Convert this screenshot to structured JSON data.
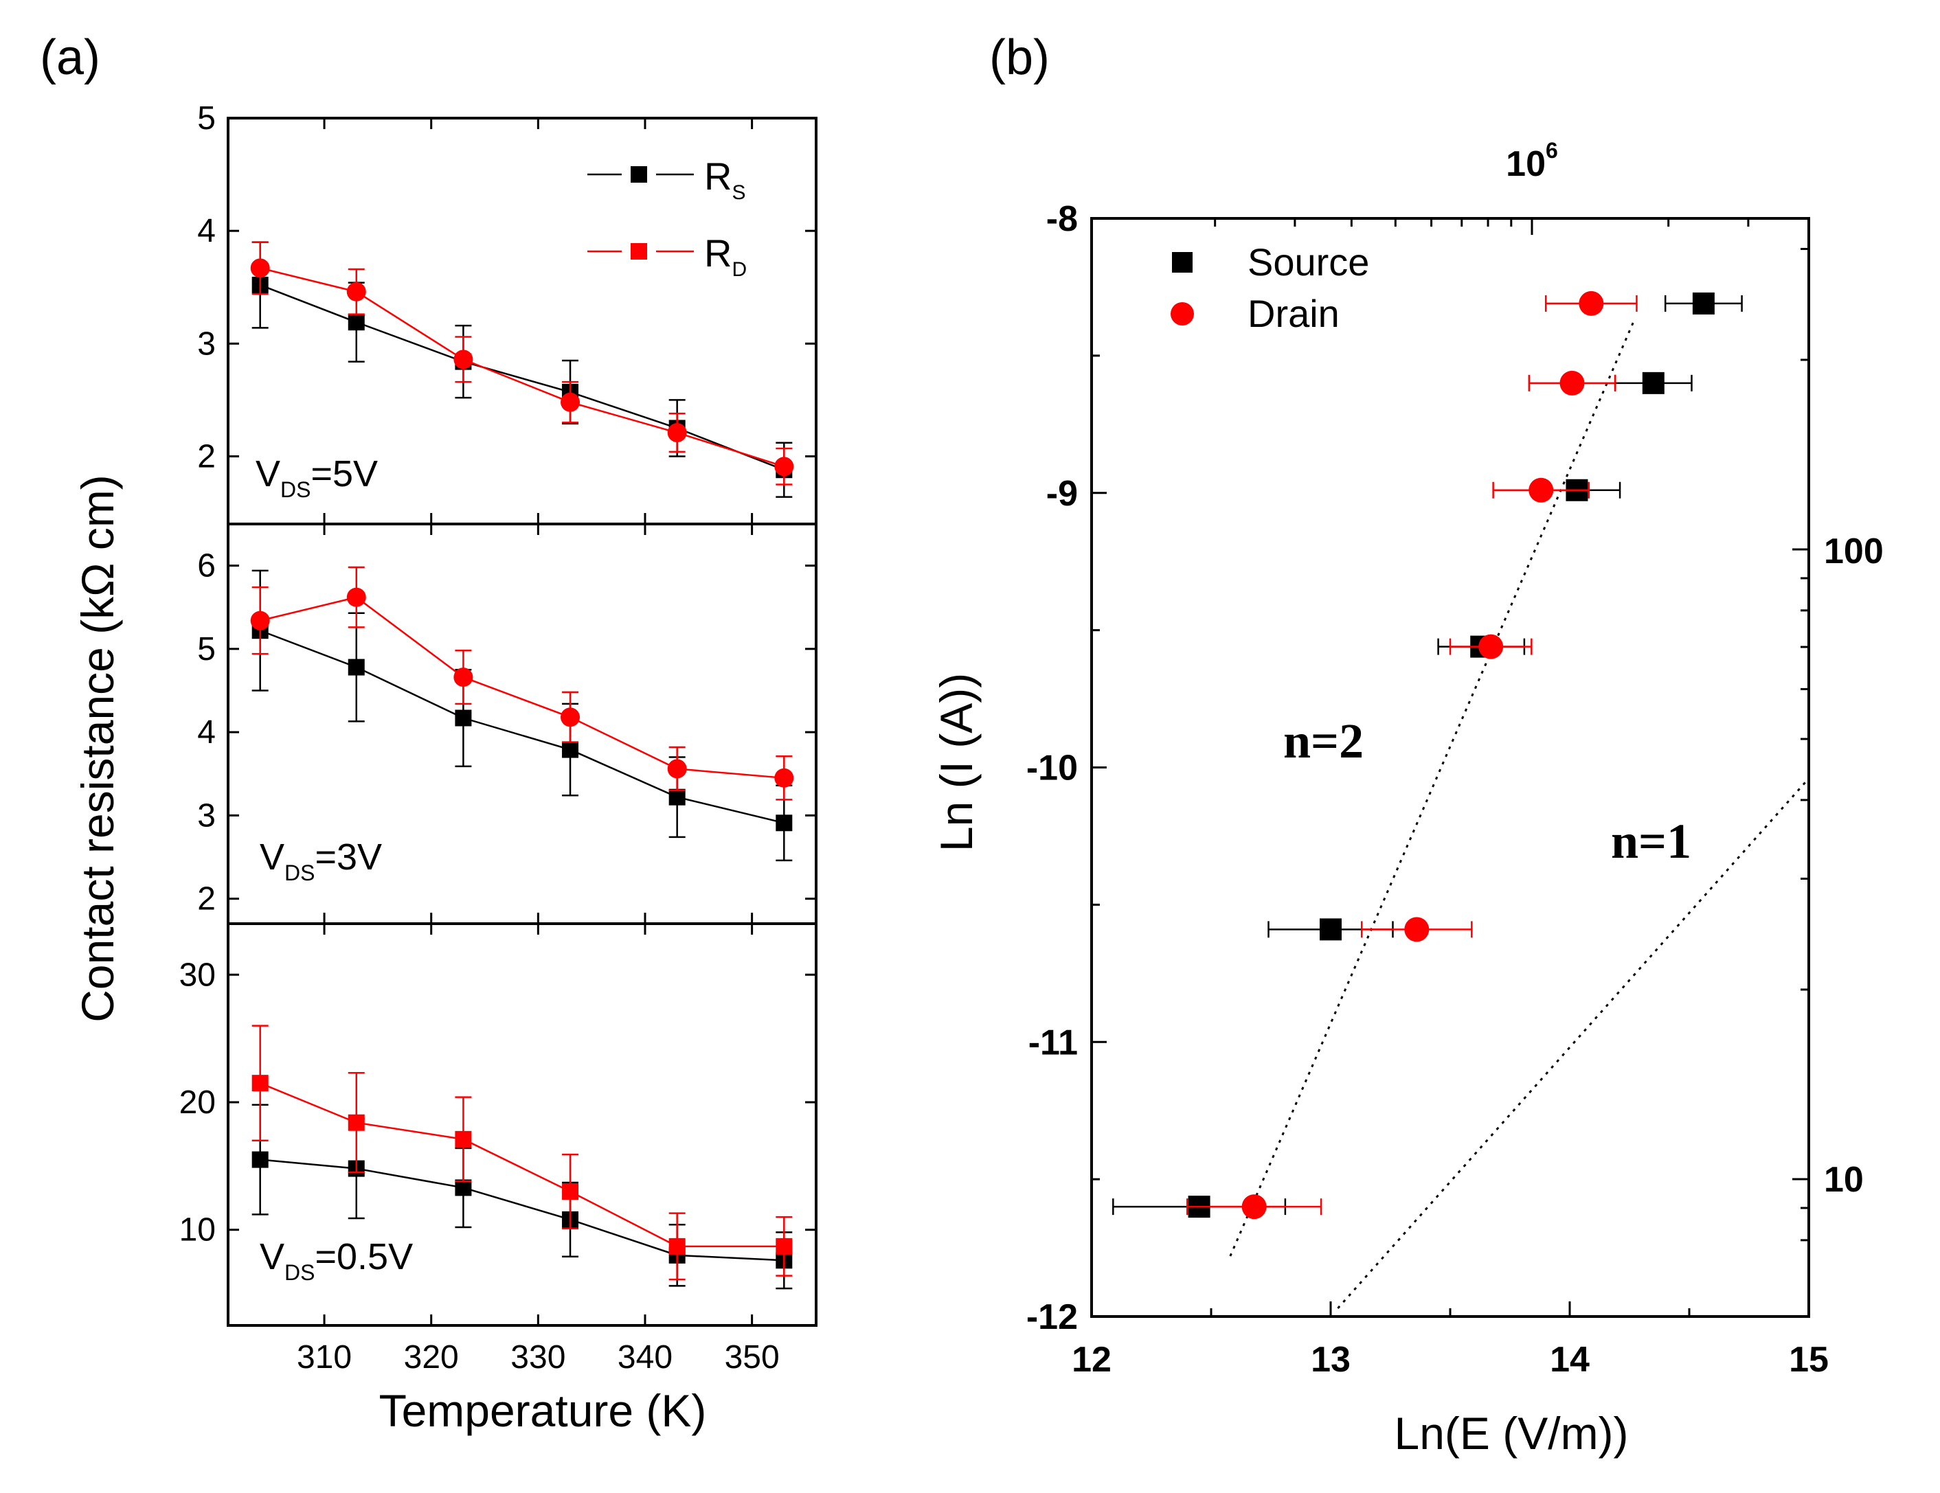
{
  "colors": {
    "black": "#000000",
    "red": "#ff0000"
  },
  "panel_labels": {
    "a": "(a)",
    "b": "(b)"
  },
  "chart_data": [
    {
      "type": "line",
      "panel": "(a)",
      "ylabel": "Contact resistance (kΩ cm)",
      "xlabel": "Temperature (K)",
      "x_ticks": [
        "310",
        "320",
        "330",
        "340",
        "350"
      ],
      "x": [
        304,
        313,
        323,
        333,
        343,
        353
      ],
      "xlim": [
        301,
        356
      ],
      "legend": {
        "placement": "top-right",
        "entries": [
          {
            "base": "R",
            "sub": "S"
          },
          {
            "base": "R",
            "sub": "D"
          }
        ]
      },
      "subplots": [
        {
          "annotation": {
            "base": "V",
            "sub": "DS",
            "rest": "=5V"
          },
          "ylim": [
            1.4,
            5.0
          ],
          "y_ticks": [
            "2",
            "3",
            "4",
            "5"
          ],
          "series": [
            {
              "name": "R_S",
              "color": "#000000",
              "marker": "square",
              "values": [
                3.52,
                3.19,
                2.84,
                2.57,
                2.25,
                1.88
              ],
              "errors": [
                0.38,
                0.35,
                0.32,
                0.28,
                0.25,
                0.24
              ]
            },
            {
              "name": "R_D",
              "color": "#ff0000",
              "marker": "circle",
              "values": [
                3.67,
                3.46,
                2.86,
                2.48,
                2.21,
                1.91
              ],
              "errors": [
                0.23,
                0.2,
                0.2,
                0.18,
                0.17,
                0.16
              ]
            }
          ]
        },
        {
          "annotation": {
            "base": "V",
            "sub": "DS",
            "rest": "=3V"
          },
          "ylim": [
            1.7,
            6.5
          ],
          "y_ticks": [
            "2",
            "3",
            "4",
            "5",
            "6"
          ],
          "series": [
            {
              "name": "R_S",
              "color": "#000000",
              "marker": "square",
              "values": [
                5.22,
                4.78,
                4.17,
                3.79,
                3.22,
                2.91
              ],
              "errors": [
                0.72,
                0.65,
                0.58,
                0.55,
                0.48,
                0.45
              ]
            },
            {
              "name": "R_D",
              "color": "#ff0000",
              "marker": "circle",
              "values": [
                5.34,
                5.62,
                4.66,
                4.18,
                3.56,
                3.45
              ],
              "errors": [
                0.4,
                0.36,
                0.32,
                0.3,
                0.26,
                0.26
              ]
            }
          ]
        },
        {
          "annotation": {
            "base": "V",
            "sub": "DS",
            "rest": "=0.5V"
          },
          "ylim": [
            2.5,
            34
          ],
          "y_ticks": [
            "10",
            "20",
            "30"
          ],
          "series": [
            {
              "name": "R_S",
              "color": "#000000",
              "marker": "square",
              "values": [
                15.5,
                14.8,
                13.3,
                10.8,
                8.0,
                7.6
              ],
              "errors": [
                4.3,
                3.9,
                3.1,
                2.9,
                2.4,
                2.2
              ]
            },
            {
              "name": "R_D",
              "color": "#ff0000",
              "marker": "square",
              "values": [
                21.5,
                18.4,
                17.1,
                13.0,
                8.7,
                8.7
              ],
              "errors": [
                4.5,
                3.9,
                3.3,
                2.9,
                2.6,
                2.3
              ]
            }
          ]
        }
      ]
    },
    {
      "type": "scatter",
      "panel": "(b)",
      "xlabel": "Ln(E (V/m))",
      "ylabel": "Ln (I (A))",
      "xlim": [
        12,
        15
      ],
      "ylim": [
        -12,
        -8
      ],
      "x_ticks": [
        "12",
        "13",
        "14",
        "15"
      ],
      "y_ticks": [
        "-8",
        "-9",
        "-10",
        "-11",
        "-12"
      ],
      "top_axis_label": "10",
      "top_axis_exp": "6",
      "right_axis_labels": [
        "100",
        "10"
      ],
      "legend": {
        "placement": "top-left",
        "entries": [
          "Source",
          "Drain"
        ]
      },
      "series": [
        {
          "name": "Source",
          "color": "#000000",
          "marker": "square",
          "points": [
            {
              "x": 14.56,
              "y": -8.31,
              "xerr": 0.16
            },
            {
              "x": 14.35,
              "y": -8.6,
              "xerr": 0.16
            },
            {
              "x": 14.03,
              "y": -8.99,
              "xerr": 0.18
            },
            {
              "x": 13.63,
              "y": -9.56,
              "xerr": 0.18
            },
            {
              "x": 13.0,
              "y": -10.59,
              "xerr": 0.26
            },
            {
              "x": 12.45,
              "y": -11.6,
              "xerr": 0.36
            }
          ]
        },
        {
          "name": "Drain",
          "color": "#ff0000",
          "marker": "circle",
          "points": [
            {
              "x": 14.09,
              "y": -8.31,
              "xerr": 0.19
            },
            {
              "x": 14.01,
              "y": -8.6,
              "xerr": 0.18
            },
            {
              "x": 13.88,
              "y": -8.99,
              "xerr": 0.2
            },
            {
              "x": 13.67,
              "y": -9.56,
              "xerr": 0.17
            },
            {
              "x": 13.36,
              "y": -10.59,
              "xerr": 0.23
            },
            {
              "x": 12.68,
              "y": -11.6,
              "xerr": 0.28
            }
          ]
        }
      ],
      "fit_lines": [
        {
          "label": "n=2",
          "from": [
            12.58,
            -11.78
          ],
          "to": [
            14.27,
            -8.37
          ]
        },
        {
          "label": "n=1",
          "from": [
            13.03,
            -11.97
          ],
          "to": [
            15.0,
            -10.04
          ]
        }
      ]
    }
  ]
}
